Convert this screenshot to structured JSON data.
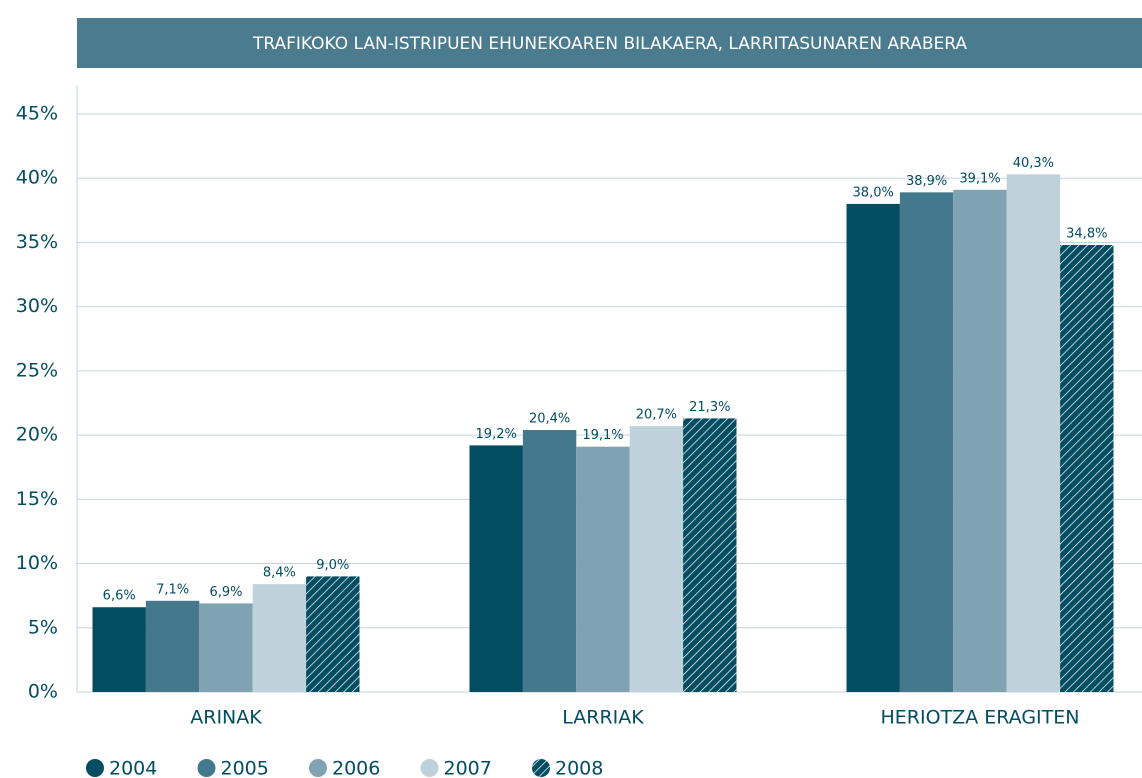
{
  "chart_data": {
    "type": "bar",
    "title": "TRAFIKOKO LAN-ISTRIPUEN EHUNEKOAREN BILAKAERA, LARRITASUNAREN ARABERA",
    "categories": [
      "ARINAK",
      "LARRIAK",
      "HERIOTZA ERAGITEN"
    ],
    "series": [
      {
        "name": "2004",
        "color": "#034d63",
        "values": [
          6.6,
          19.2,
          38.0
        ],
        "value_labels": [
          "6,6%",
          "19,2%",
          "38,0%"
        ]
      },
      {
        "name": "2005",
        "color": "#44788c",
        "values": [
          7.1,
          20.4,
          38.9
        ],
        "value_labels": [
          "7,1%",
          "20,4%",
          "38,9%"
        ]
      },
      {
        "name": "2006",
        "color": "#7fa3b3",
        "values": [
          6.9,
          19.1,
          39.1
        ],
        "value_labels": [
          "6,9%",
          "19,1%",
          "39,1%"
        ]
      },
      {
        "name": "2007",
        "color": "#bfd1da",
        "values": [
          8.4,
          20.7,
          40.3
        ],
        "value_labels": [
          "8,4%",
          "20,7%",
          "40,3%"
        ]
      },
      {
        "name": "2008",
        "color": "#034d63",
        "hatch": true,
        "values": [
          9.0,
          21.3,
          34.8
        ],
        "value_labels": [
          "9,0%",
          "21,3%",
          "34,8%"
        ]
      }
    ],
    "ylim": [
      0,
      45
    ],
    "yticks": [
      {
        "value": 0,
        "label": "0%"
      },
      {
        "value": 5,
        "label": "5%"
      },
      {
        "value": 10,
        "label": "10%"
      },
      {
        "value": 15,
        "label": "15%"
      },
      {
        "value": 20,
        "label": "20%"
      },
      {
        "value": 25,
        "label": "25%"
      },
      {
        "value": 30,
        "label": "30%"
      },
      {
        "value": 35,
        "label": "35%"
      },
      {
        "value": 40,
        "label": "40%"
      },
      {
        "value": 45,
        "label": "45%"
      }
    ],
    "grid": true,
    "legend": "bottom"
  }
}
